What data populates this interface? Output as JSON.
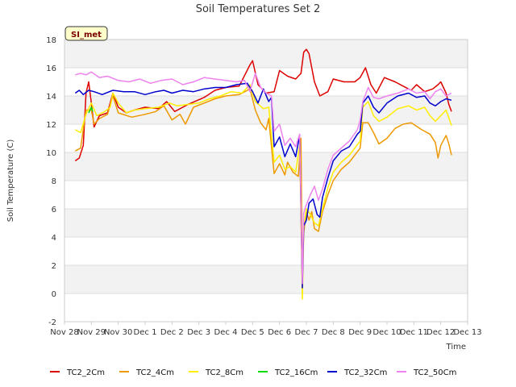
{
  "chart_data": {
    "type": "line",
    "title": "Soil Temperatures Set 2",
    "xlabel": "Time",
    "ylabel": "Soil Temperature (C)",
    "ylim": [
      -2,
      18
    ],
    "yticks": [
      -2,
      0,
      2,
      4,
      6,
      8,
      10,
      12,
      14,
      16,
      18
    ],
    "xlim": [
      0,
      15
    ],
    "xticks": [
      0,
      1,
      2,
      3,
      4,
      5,
      6,
      7,
      8,
      9,
      10,
      11,
      12,
      13,
      14,
      15
    ],
    "xtick_labels": [
      "Nov 28",
      "Nov 29",
      "Nov 30",
      "Dec 1",
      "Dec 2",
      "Dec 3",
      "Dec 4",
      "Dec 5",
      "Dec 6",
      "Dec 7",
      "Dec 8",
      "Dec 9",
      "Dec 10",
      "Dec 11",
      "Dec 12",
      "Dec 13"
    ],
    "badge": "SI_met",
    "grid": "horizontal alternating bands",
    "legend_position": "bottom",
    "series": [
      {
        "name": "TC2_2Cm",
        "color": "#dd0000",
        "points": [
          [
            0.4,
            9.4
          ],
          [
            0.55,
            9.6
          ],
          [
            0.7,
            10.5
          ],
          [
            0.8,
            14.2
          ],
          [
            0.9,
            15.0
          ],
          [
            1.0,
            13.5
          ],
          [
            1.1,
            11.8
          ],
          [
            1.3,
            12.6
          ],
          [
            1.6,
            12.8
          ],
          [
            1.8,
            14.2
          ],
          [
            2.0,
            13.2
          ],
          [
            2.3,
            12.8
          ],
          [
            2.6,
            13.0
          ],
          [
            3.0,
            13.2
          ],
          [
            3.5,
            13.1
          ],
          [
            3.8,
            13.6
          ],
          [
            4.1,
            12.9
          ],
          [
            4.6,
            13.4
          ],
          [
            5.2,
            13.9
          ],
          [
            5.6,
            14.4
          ],
          [
            6.0,
            14.6
          ],
          [
            6.5,
            14.7
          ],
          [
            6.9,
            16.2
          ],
          [
            7.0,
            16.5
          ],
          [
            7.2,
            14.8
          ],
          [
            7.5,
            14.2
          ],
          [
            7.8,
            14.3
          ],
          [
            8.0,
            15.8
          ],
          [
            8.3,
            15.4
          ],
          [
            8.6,
            15.2
          ],
          [
            8.8,
            15.6
          ],
          [
            8.9,
            17.1
          ],
          [
            9.0,
            17.3
          ],
          [
            9.1,
            17.0
          ],
          [
            9.3,
            15.0
          ],
          [
            9.5,
            14.0
          ],
          [
            9.8,
            14.3
          ],
          [
            10.0,
            15.2
          ],
          [
            10.4,
            15.0
          ],
          [
            10.8,
            15.0
          ],
          [
            11.0,
            15.3
          ],
          [
            11.2,
            16.0
          ],
          [
            11.4,
            14.8
          ],
          [
            11.6,
            14.2
          ],
          [
            11.9,
            15.3
          ],
          [
            12.3,
            15.0
          ],
          [
            12.6,
            14.7
          ],
          [
            12.9,
            14.4
          ],
          [
            13.1,
            14.8
          ],
          [
            13.4,
            14.3
          ],
          [
            13.7,
            14.5
          ],
          [
            13.9,
            14.8
          ],
          [
            14.0,
            15.0
          ],
          [
            14.2,
            14.2
          ],
          [
            14.3,
            13.4
          ],
          [
            14.4,
            12.9
          ]
        ]
      },
      {
        "name": "TC2_4Cm",
        "color": "#ee9900",
        "points": [
          [
            0.4,
            10.1
          ],
          [
            0.6,
            10.3
          ],
          [
            0.8,
            13.0
          ],
          [
            1.0,
            13.0
          ],
          [
            1.1,
            12.0
          ],
          [
            1.3,
            12.4
          ],
          [
            1.6,
            12.7
          ],
          [
            1.8,
            14.0
          ],
          [
            2.0,
            12.8
          ],
          [
            2.5,
            12.5
          ],
          [
            3.0,
            12.7
          ],
          [
            3.4,
            12.9
          ],
          [
            3.7,
            13.3
          ],
          [
            4.0,
            12.3
          ],
          [
            4.3,
            12.7
          ],
          [
            4.5,
            12.0
          ],
          [
            4.8,
            13.2
          ],
          [
            5.2,
            13.5
          ],
          [
            5.6,
            13.8
          ],
          [
            6.0,
            14.0
          ],
          [
            6.5,
            14.1
          ],
          [
            6.9,
            14.5
          ],
          [
            7.1,
            13.0
          ],
          [
            7.3,
            12.1
          ],
          [
            7.5,
            11.6
          ],
          [
            7.6,
            12.4
          ],
          [
            7.8,
            8.5
          ],
          [
            8.0,
            9.2
          ],
          [
            8.2,
            8.4
          ],
          [
            8.3,
            9.3
          ],
          [
            8.5,
            8.6
          ],
          [
            8.7,
            8.3
          ],
          [
            8.8,
            11.0
          ],
          [
            8.85,
            0.5
          ],
          [
            8.9,
            4.3
          ],
          [
            9.0,
            5.8
          ],
          [
            9.1,
            5.2
          ],
          [
            9.2,
            5.8
          ],
          [
            9.3,
            4.6
          ],
          [
            9.45,
            4.4
          ],
          [
            9.6,
            5.8
          ],
          [
            9.8,
            7.0
          ],
          [
            10.0,
            8.0
          ],
          [
            10.3,
            8.8
          ],
          [
            10.6,
            9.3
          ],
          [
            11.0,
            10.3
          ],
          [
            11.1,
            12.1
          ],
          [
            11.3,
            12.1
          ],
          [
            11.5,
            11.4
          ],
          [
            11.7,
            10.6
          ],
          [
            12.0,
            11.0
          ],
          [
            12.3,
            11.7
          ],
          [
            12.6,
            12.0
          ],
          [
            12.9,
            12.1
          ],
          [
            13.3,
            11.6
          ],
          [
            13.6,
            11.3
          ],
          [
            13.8,
            10.7
          ],
          [
            13.9,
            9.6
          ],
          [
            14.0,
            10.5
          ],
          [
            14.2,
            11.2
          ],
          [
            14.3,
            10.6
          ],
          [
            14.4,
            9.8
          ]
        ]
      },
      {
        "name": "TC2_8Cm",
        "color": "#ffee00",
        "points": [
          [
            0.4,
            11.6
          ],
          [
            0.6,
            11.4
          ],
          [
            0.8,
            12.7
          ],
          [
            1.0,
            13.5
          ],
          [
            1.2,
            12.6
          ],
          [
            1.5,
            12.9
          ],
          [
            1.7,
            13.2
          ],
          [
            1.8,
            14.2
          ],
          [
            2.0,
            13.5
          ],
          [
            2.3,
            12.8
          ],
          [
            2.6,
            13.0
          ],
          [
            3.0,
            13.1
          ],
          [
            3.5,
            13.2
          ],
          [
            3.9,
            13.5
          ],
          [
            4.2,
            13.3
          ],
          [
            4.6,
            13.4
          ],
          [
            5.0,
            13.5
          ],
          [
            5.4,
            13.8
          ],
          [
            5.8,
            14.0
          ],
          [
            6.2,
            14.3
          ],
          [
            6.6,
            14.2
          ],
          [
            6.9,
            14.8
          ],
          [
            7.1,
            13.6
          ],
          [
            7.4,
            13.1
          ],
          [
            7.6,
            13.2
          ],
          [
            7.8,
            9.3
          ],
          [
            8.0,
            9.8
          ],
          [
            8.2,
            8.8
          ],
          [
            8.4,
            9.0
          ],
          [
            8.6,
            8.6
          ],
          [
            8.75,
            10.5
          ],
          [
            8.85,
            -0.4
          ],
          [
            8.9,
            4.5
          ],
          [
            9.0,
            6.0
          ],
          [
            9.15,
            5.6
          ],
          [
            9.3,
            5.0
          ],
          [
            9.45,
            4.8
          ],
          [
            9.6,
            6.0
          ],
          [
            9.8,
            7.5
          ],
          [
            10.0,
            8.6
          ],
          [
            10.3,
            9.3
          ],
          [
            10.6,
            9.8
          ],
          [
            11.0,
            10.8
          ],
          [
            11.1,
            13.2
          ],
          [
            11.3,
            13.6
          ],
          [
            11.5,
            12.6
          ],
          [
            11.7,
            12.2
          ],
          [
            12.0,
            12.5
          ],
          [
            12.4,
            13.1
          ],
          [
            12.8,
            13.3
          ],
          [
            13.1,
            13.0
          ],
          [
            13.4,
            13.2
          ],
          [
            13.6,
            12.6
          ],
          [
            13.8,
            12.2
          ],
          [
            14.0,
            12.6
          ],
          [
            14.2,
            13.0
          ],
          [
            14.4,
            11.9
          ]
        ]
      },
      {
        "name": "TC2_16Cm",
        "color": "#00dd00",
        "points": [
          [
            0.9,
            12.8
          ],
          [
            0.95,
            13.0
          ],
          [
            1.0,
            13.2
          ],
          [
            1.05,
            12.9
          ]
        ]
      },
      {
        "name": "TC2_32Cm",
        "color": "#0000cc",
        "points": [
          [
            0.4,
            14.2
          ],
          [
            0.55,
            14.4
          ],
          [
            0.7,
            14.1
          ],
          [
            0.9,
            14.4
          ],
          [
            1.1,
            14.3
          ],
          [
            1.4,
            14.1
          ],
          [
            1.8,
            14.4
          ],
          [
            2.2,
            14.3
          ],
          [
            2.6,
            14.3
          ],
          [
            3.0,
            14.1
          ],
          [
            3.4,
            14.3
          ],
          [
            3.7,
            14.4
          ],
          [
            4.0,
            14.2
          ],
          [
            4.4,
            14.4
          ],
          [
            4.8,
            14.3
          ],
          [
            5.2,
            14.5
          ],
          [
            5.6,
            14.6
          ],
          [
            6.0,
            14.6
          ],
          [
            6.4,
            14.8
          ],
          [
            6.8,
            14.9
          ],
          [
            7.0,
            14.3
          ],
          [
            7.2,
            13.5
          ],
          [
            7.4,
            14.5
          ],
          [
            7.6,
            13.6
          ],
          [
            7.7,
            13.9
          ],
          [
            7.8,
            10.4
          ],
          [
            8.0,
            11.1
          ],
          [
            8.2,
            9.7
          ],
          [
            8.4,
            10.6
          ],
          [
            8.6,
            9.7
          ],
          [
            8.75,
            11.2
          ],
          [
            8.85,
            0.4
          ],
          [
            8.9,
            4.8
          ],
          [
            9.0,
            5.2
          ],
          [
            9.1,
            6.4
          ],
          [
            9.25,
            6.7
          ],
          [
            9.4,
            5.6
          ],
          [
            9.5,
            5.4
          ],
          [
            9.6,
            6.8
          ],
          [
            9.8,
            8.2
          ],
          [
            10.0,
            9.4
          ],
          [
            10.3,
            10.1
          ],
          [
            10.6,
            10.4
          ],
          [
            10.9,
            11.3
          ],
          [
            11.0,
            11.5
          ],
          [
            11.1,
            13.5
          ],
          [
            11.3,
            14.0
          ],
          [
            11.5,
            13.2
          ],
          [
            11.7,
            12.8
          ],
          [
            12.0,
            13.5
          ],
          [
            12.4,
            14.0
          ],
          [
            12.8,
            14.2
          ],
          [
            13.1,
            13.9
          ],
          [
            13.4,
            14.0
          ],
          [
            13.6,
            13.5
          ],
          [
            13.8,
            13.3
          ],
          [
            14.0,
            13.6
          ],
          [
            14.2,
            13.8
          ],
          [
            14.4,
            13.7
          ]
        ]
      },
      {
        "name": "TC2_50Cm",
        "color": "#ee82ee",
        "points": [
          [
            0.4,
            15.5
          ],
          [
            0.6,
            15.6
          ],
          [
            0.8,
            15.5
          ],
          [
            1.0,
            15.7
          ],
          [
            1.3,
            15.3
          ],
          [
            1.6,
            15.4
          ],
          [
            2.0,
            15.1
          ],
          [
            2.4,
            15.0
          ],
          [
            2.8,
            15.2
          ],
          [
            3.2,
            14.9
          ],
          [
            3.6,
            15.1
          ],
          [
            4.0,
            15.2
          ],
          [
            4.4,
            14.8
          ],
          [
            4.8,
            15.0
          ],
          [
            5.2,
            15.3
          ],
          [
            5.6,
            15.2
          ],
          [
            6.0,
            15.1
          ],
          [
            6.4,
            15.0
          ],
          [
            6.7,
            15.1
          ],
          [
            6.9,
            14.3
          ],
          [
            7.1,
            15.6
          ],
          [
            7.3,
            14.6
          ],
          [
            7.5,
            14.2
          ],
          [
            7.7,
            14.0
          ],
          [
            7.8,
            11.5
          ],
          [
            8.0,
            12.0
          ],
          [
            8.2,
            10.5
          ],
          [
            8.4,
            11.0
          ],
          [
            8.6,
            10.4
          ],
          [
            8.75,
            11.3
          ],
          [
            8.85,
            0.7
          ],
          [
            8.9,
            5.7
          ],
          [
            9.0,
            6.3
          ],
          [
            9.15,
            7.0
          ],
          [
            9.3,
            7.6
          ],
          [
            9.45,
            6.6
          ],
          [
            9.6,
            7.4
          ],
          [
            9.8,
            8.8
          ],
          [
            10.0,
            9.8
          ],
          [
            10.3,
            10.3
          ],
          [
            10.6,
            10.8
          ],
          [
            10.9,
            11.6
          ],
          [
            11.0,
            12.3
          ],
          [
            11.1,
            13.6
          ],
          [
            11.3,
            14.6
          ],
          [
            11.5,
            13.9
          ],
          [
            11.7,
            13.8
          ],
          [
            12.0,
            14.0
          ],
          [
            12.4,
            14.2
          ],
          [
            12.8,
            14.5
          ],
          [
            13.1,
            14.2
          ],
          [
            13.4,
            14.3
          ],
          [
            13.6,
            13.8
          ],
          [
            13.8,
            14.3
          ],
          [
            14.0,
            14.5
          ],
          [
            14.2,
            14.0
          ],
          [
            14.4,
            14.2
          ]
        ]
      }
    ]
  }
}
